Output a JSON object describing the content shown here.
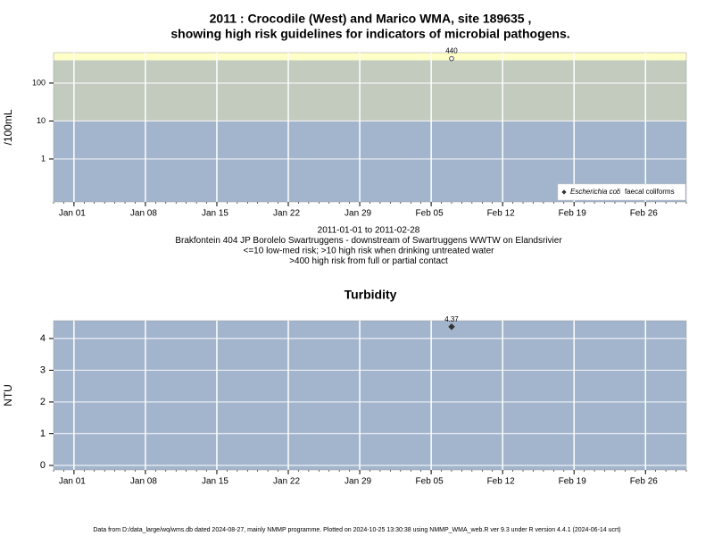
{
  "chart_data": [
    {
      "type": "scatter",
      "title": [
        "2011 : Crocodile (West) and Marico WMA, site 189635 ,",
        "showing high risk guidelines for indicators of microbial pathogens."
      ],
      "ylabel": "/100mL",
      "log_scale": true,
      "ylim": [
        0.074,
        630
      ],
      "yticks": [
        1,
        10,
        100
      ],
      "xlim": [
        "2010-12-30",
        "2011-03-02"
      ],
      "xticks": [
        {
          "value": "2011-01-01",
          "label": "Jan 01"
        },
        {
          "value": "2011-01-08",
          "label": "Jan 08"
        },
        {
          "value": "2011-01-15",
          "label": "Jan 15"
        },
        {
          "value": "2011-01-22",
          "label": "Jan 22"
        },
        {
          "value": "2011-01-29",
          "label": "Jan 29"
        },
        {
          "value": "2011-02-05",
          "label": "Feb 05"
        },
        {
          "value": "2011-02-12",
          "label": "Feb 12"
        },
        {
          "value": "2011-02-19",
          "label": "Feb 19"
        },
        {
          "value": "2011-02-26",
          "label": "Feb 26"
        }
      ],
      "grid": true,
      "thresholds": [
        10,
        400
      ],
      "band_colors": [
        "#a3b5cd",
        "#c3cbbf",
        "#ffffc8"
      ],
      "legend": "bottomright",
      "series": [
        {
          "name": "Escherichia coli",
          "marker": "diamond",
          "color": "#333333",
          "x": [],
          "values": []
        },
        {
          "name": "faecal coliforms",
          "marker": "circle",
          "color": "#333333",
          "x": [
            "2011-02-07"
          ],
          "values": [
            440
          ]
        }
      ],
      "notes": [
        "2011-01-01 to 2011-02-28",
        "Brakfontein 404 JP Borolelo Swartruggens - downstream of Swartruggens WWTW on Elandsrivier",
        "<=10 low-med risk; >10 high risk when drinking untreated water",
        ">400 high risk from full or partial contact"
      ]
    },
    {
      "type": "scatter",
      "title": [
        "Turbidity"
      ],
      "ylabel": "NTU",
      "log_scale": false,
      "ylim": [
        -0.14,
        4.56
      ],
      "yticks": [
        0,
        1,
        2,
        3,
        4
      ],
      "xlim": [
        "2010-12-30",
        "2011-03-02"
      ],
      "xticks": [
        {
          "value": "2011-01-01",
          "label": "Jan 01"
        },
        {
          "value": "2011-01-08",
          "label": "Jan 08"
        },
        {
          "value": "2011-01-15",
          "label": "Jan 15"
        },
        {
          "value": "2011-01-22",
          "label": "Jan 22"
        },
        {
          "value": "2011-01-29",
          "label": "Jan 29"
        },
        {
          "value": "2011-02-05",
          "label": "Feb 05"
        },
        {
          "value": "2011-02-12",
          "label": "Feb 12"
        },
        {
          "value": "2011-02-19",
          "label": "Feb 19"
        },
        {
          "value": "2011-02-26",
          "label": "Feb 26"
        }
      ],
      "grid": true,
      "band_colors": [
        "#a3b5cd"
      ],
      "series": [
        {
          "name": "Turbidity",
          "marker": "diamond",
          "color": "#333333",
          "x": [
            "2011-02-07"
          ],
          "values": [
            4.37
          ]
        }
      ]
    }
  ],
  "footer": "Data from D:/data_large/wq/wms.db dated 2024-08-27, mainly NMMP programme. Plotted on 2024-10-25 13:30:38 using NMMP_WMA_web.R ver 9.3 under R version 4.4.1 (2024-06-14 ucrt)"
}
